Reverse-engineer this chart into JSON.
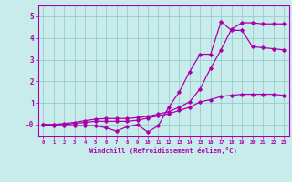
{
  "x_ticks": [
    0,
    1,
    2,
    3,
    4,
    5,
    6,
    7,
    8,
    9,
    10,
    11,
    12,
    13,
    14,
    15,
    16,
    17,
    18,
    19,
    20,
    21,
    22,
    23
  ],
  "xlabel": "Windchill (Refroidissement éolien,°C)",
  "ylim": [
    -0.55,
    5.5
  ],
  "xlim": [
    -0.5,
    23.5
  ],
  "yticks": [
    0,
    1,
    2,
    3,
    4,
    5
  ],
  "ytick_labels": [
    "-0",
    "1",
    "2",
    "3",
    "4",
    "5"
  ],
  "bg_color": "#c8ecec",
  "line_color": "#aa00aa",
  "grid_color": "#99cccc",
  "series1_x": [
    0,
    1,
    2,
    3,
    4,
    5,
    6,
    7,
    8,
    9,
    10,
    11,
    12,
    13,
    14,
    15,
    16,
    17,
    18,
    19,
    20,
    21,
    22,
    23
  ],
  "series1_y": [
    0.0,
    -0.05,
    -0.05,
    -0.05,
    -0.05,
    -0.05,
    -0.15,
    -0.3,
    -0.1,
    -0.0,
    -0.35,
    -0.05,
    0.8,
    1.5,
    2.45,
    3.25,
    3.25,
    4.75,
    4.35,
    4.35,
    3.6,
    3.55,
    3.5,
    3.45
  ],
  "series2_x": [
    0,
    1,
    2,
    3,
    4,
    5,
    6,
    7,
    8,
    9,
    10,
    11,
    12,
    13,
    14,
    15,
    16,
    17,
    18,
    19,
    20,
    21,
    22,
    23
  ],
  "series2_y": [
    0.0,
    0.0,
    0.0,
    0.05,
    0.1,
    0.15,
    0.15,
    0.15,
    0.15,
    0.2,
    0.3,
    0.4,
    0.5,
    0.65,
    0.8,
    1.05,
    1.15,
    1.3,
    1.35,
    1.4,
    1.4,
    1.4,
    1.4,
    1.35
  ],
  "series3_x": [
    0,
    1,
    2,
    3,
    4,
    5,
    6,
    7,
    8,
    9,
    10,
    11,
    12,
    13,
    14,
    15,
    16,
    17,
    18,
    19,
    20,
    21,
    22,
    23
  ],
  "series3_y": [
    0.0,
    0.0,
    0.05,
    0.1,
    0.18,
    0.25,
    0.28,
    0.28,
    0.28,
    0.32,
    0.38,
    0.48,
    0.6,
    0.8,
    1.05,
    1.65,
    2.6,
    3.45,
    4.4,
    4.7,
    4.7,
    4.65,
    4.65,
    4.65
  ]
}
